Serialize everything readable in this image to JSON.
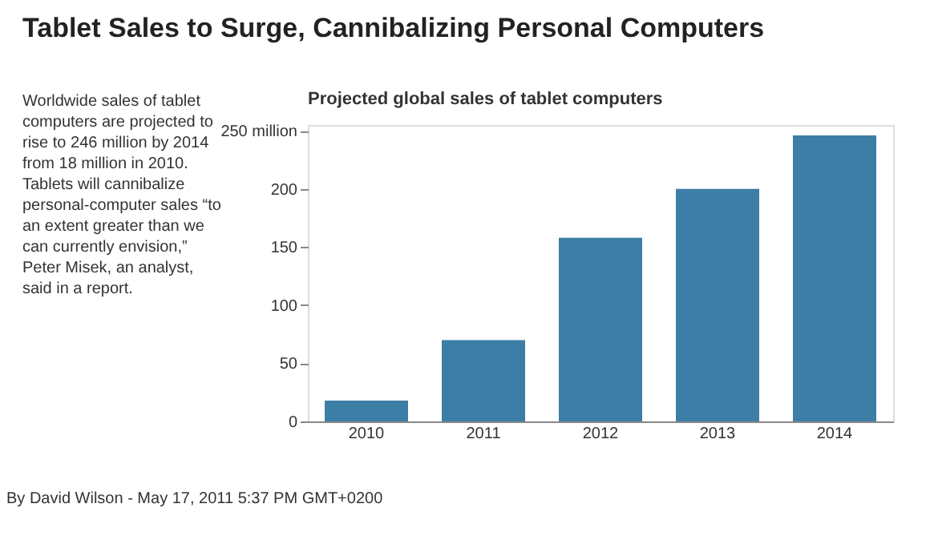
{
  "chart_data": {
    "type": "bar",
    "title": "Tablet Sales to Surge, Cannibalizing Personal Computers",
    "subtitle": "Projected global sales of tablet computers",
    "categories": [
      "2010",
      "2011",
      "2012",
      "2013",
      "2014"
    ],
    "values": [
      18,
      70,
      158,
      200,
      246
    ],
    "color": "#3d7ea6",
    "ylim": [
      0,
      255
    ],
    "yticks": [
      0,
      50,
      100,
      150,
      200,
      {
        "value": 250,
        "label": "250 million"
      }
    ],
    "grid": false,
    "annotations": [
      "Worldwide sales of tablet computers are projected to rise to 246 million by 2014 from 18 million in 2010. Tablets will cannibalize personal-computer sales “to an extent greater than we can currently envision,” Peter Misek, an analyst, said in a report.",
      "By David Wilson - May 17, 2011 5:37 PM GMT+0200"
    ]
  }
}
